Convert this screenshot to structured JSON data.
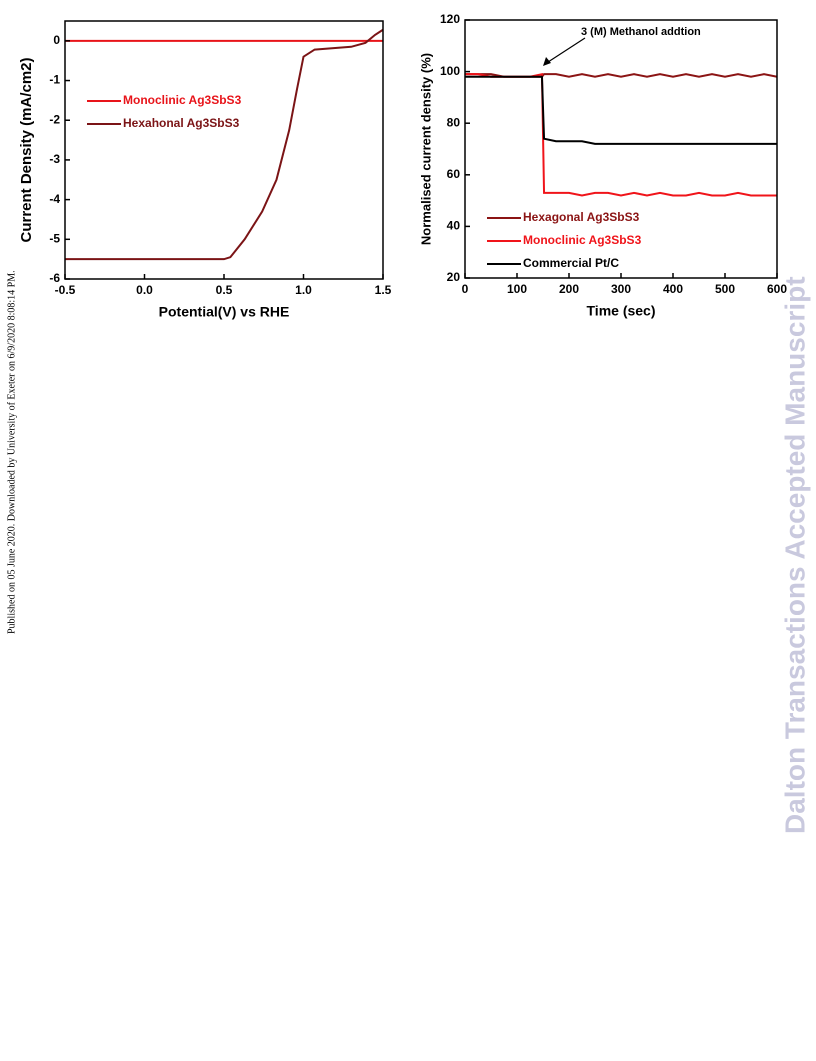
{
  "side_note": "Published on 05 June 2020. Downloaded by University of Exeter on 6/9/2020 8:08:14 PM.",
  "watermark": "Dalton Transactions Accepted Manuscript",
  "chart_data": [
    {
      "type": "line",
      "xlabel": "Potential(V) vs RHE",
      "ylabel": "Current Density (mA/cm2)",
      "xlim": [
        -0.5,
        1.5
      ],
      "xticks": [
        -0.5,
        {
          "value": 0,
          "label": "0.0"
        },
        0.5,
        {
          "value": 1,
          "label": "1.0"
        },
        1.5
      ],
      "ylim": [
        -6,
        0.5
      ],
      "yticks": [
        -6,
        -5,
        -4,
        -3,
        -2,
        -1,
        0
      ],
      "legend": "upper left",
      "series": [
        {
          "name": "Monoclinic Ag3SbS3",
          "color": "#e8141a",
          "x": [
            -0.5,
            1.5
          ],
          "values": [
            0,
            0
          ]
        },
        {
          "name": "Hexahonal Ag3SbS3",
          "color": "#7b1416",
          "x": [
            -0.5,
            0.0,
            0.5,
            0.54,
            0.63,
            0.74,
            0.83,
            0.91,
            0.96,
            1.0,
            1.07,
            1.3,
            1.39,
            1.45,
            1.5
          ],
          "values": [
            -5.5,
            -5.5,
            -5.5,
            -5.45,
            -5.0,
            -4.3,
            -3.5,
            -2.25,
            -1.2,
            -0.4,
            -0.22,
            -0.15,
            -0.05,
            0.15,
            0.28
          ]
        }
      ]
    },
    {
      "type": "line",
      "xlabel": "Time (sec)",
      "ylabel": "Normalised current density (%)",
      "xlim": [
        0,
        600
      ],
      "xticks": [
        0,
        100,
        200,
        300,
        400,
        500,
        600
      ],
      "ylim": [
        20,
        120
      ],
      "yticks": [
        20,
        40,
        60,
        80,
        100,
        120
      ],
      "legend": "lower left",
      "annotation": "3 (M) Methanol addtion",
      "annotation_x": 150,
      "x": [
        0,
        25,
        50,
        75,
        100,
        125,
        148,
        152,
        175,
        200,
        225,
        250,
        275,
        300,
        325,
        350,
        375,
        400,
        425,
        450,
        475,
        500,
        525,
        550,
        575,
        600
      ],
      "series": [
        {
          "name": "Hexagonal Ag3SbS3",
          "color": "#8b1414",
          "values": [
            99,
            99,
            99,
            98,
            98,
            98,
            98,
            99,
            99,
            98,
            99,
            98,
            99,
            98,
            99,
            98,
            99,
            98,
            99,
            98,
            99,
            98,
            99,
            98,
            99,
            98
          ]
        },
        {
          "name": "Monoclinic Ag3SbS3",
          "color": "#f0141a",
          "values": [
            99,
            99,
            98,
            98,
            98,
            98,
            99,
            53,
            53,
            53,
            52,
            53,
            53,
            52,
            53,
            52,
            53,
            52,
            52,
            53,
            52,
            52,
            53,
            52,
            52,
            52
          ]
        },
        {
          "name": "Commercial Pt/C",
          "color": "#000000",
          "values": [
            98,
            98,
            98,
            98,
            98,
            98,
            98,
            74,
            73,
            73,
            73,
            72,
            72,
            72,
            72,
            72,
            72,
            72,
            72,
            72,
            72,
            72,
            72,
            72,
            72,
            72
          ]
        }
      ]
    }
  ]
}
